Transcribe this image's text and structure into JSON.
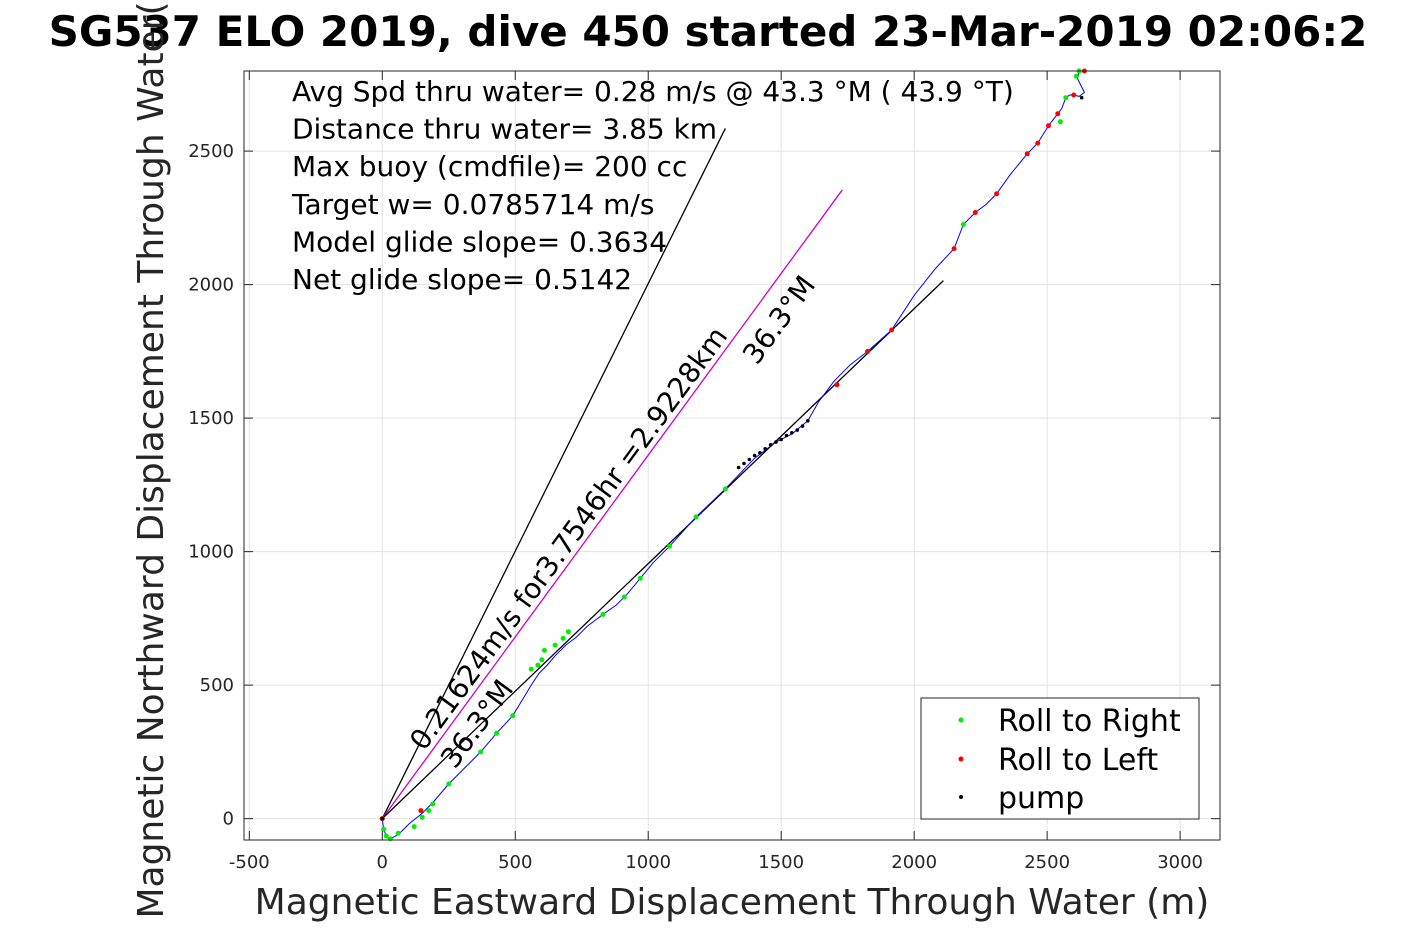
{
  "chart_data": {
    "type": "line",
    "title": "SG537 ELO 2019, dive 450 started 23-Mar-2019 02:06:2",
    "xlabel": "Magnetic Eastward Displacement Through Water (m)",
    "ylabel": "Magnetic Northward Displacement Through Water(",
    "xlim": [
      -520,
      3150
    ],
    "ylim": [
      -80,
      2800
    ],
    "xticks": [
      -500,
      0,
      500,
      1000,
      1500,
      2000,
      2500,
      3000
    ],
    "yticks": [
      0,
      500,
      1000,
      1500,
      2000,
      2500
    ],
    "xtick_labels": [
      "-500",
      "0",
      "500",
      "1000",
      "1500",
      "2000",
      "2500",
      "3000"
    ],
    "ytick_labels": [
      "0",
      "500",
      "1000",
      "1500",
      "2000",
      "2500"
    ],
    "grid": true,
    "legend_position": "bottom-right",
    "annotations": [
      "Avg Spd thru water=  0.28 m/s @  43.3 °M ( 43.9 °T)",
      "Distance thru water=  3.85 km",
      "Max buoy (cmdfile)= 200 cc",
      "Target w= 0.0785714 m/s",
      "Model glide slope= 0.3634",
      "Net glide slope= 0.5142"
    ],
    "line_labels": {
      "current": "0.21624m/s for3.7546hr =2.9228km",
      "current_heading": "36.3°M",
      "mid_heading": "36.3°M"
    },
    "reference_lines": [
      {
        "name": "black-upper",
        "color": "#000000",
        "x": [
          0,
          1290
        ],
        "y": [
          0,
          2585
        ]
      },
      {
        "name": "magenta-current",
        "color": "#cc00cc",
        "x": [
          0,
          1730
        ],
        "y": [
          0,
          2355
        ]
      },
      {
        "name": "black-mid",
        "color": "#000000",
        "x": [
          0,
          2110
        ],
        "y": [
          0,
          2015
        ]
      }
    ],
    "series": [
      {
        "name": "Roll to Right",
        "color": "#00ee00",
        "x": [
          0,
          5,
          15,
          30,
          60,
          120,
          150,
          175,
          190,
          250,
          370,
          430,
          490,
          560,
          585,
          600,
          610,
          650,
          680,
          700,
          830,
          910,
          970,
          1080,
          1180,
          1290,
          2185,
          2550,
          2570,
          2610,
          2620
        ],
        "y": [
          0,
          -40,
          -65,
          -75,
          -55,
          -30,
          5,
          30,
          55,
          130,
          250,
          320,
          385,
          560,
          575,
          595,
          630,
          650,
          675,
          700,
          765,
          830,
          900,
          1020,
          1130,
          1235,
          2225,
          2610,
          2700,
          2780,
          2800
        ]
      },
      {
        "name": "Roll to Left",
        "color": "#ff0000",
        "x": [
          0,
          145,
          1710,
          1825,
          1915,
          2150,
          2230,
          2310,
          2425,
          2465,
          2505,
          2540,
          2600,
          2640
        ],
        "y": [
          0,
          30,
          1625,
          1750,
          1830,
          2135,
          2270,
          2340,
          2490,
          2530,
          2595,
          2640,
          2710,
          2800
        ]
      },
      {
        "name": "pump",
        "color": "#000000",
        "x": [
          0,
          1340,
          1360,
          1380,
          1400,
          1420,
          1440,
          1460,
          1480,
          1500,
          1520,
          1540,
          1560,
          1580,
          1600,
          2630
        ],
        "y": [
          0,
          1315,
          1330,
          1345,
          1360,
          1370,
          1385,
          1400,
          1410,
          1420,
          1435,
          1445,
          1455,
          1470,
          1490,
          2700
        ]
      },
      {
        "name": "track",
        "color": "#0000ff",
        "x": [
          0,
          5,
          15,
          30,
          60,
          100,
          150,
          190,
          250,
          310,
          370,
          430,
          490,
          530,
          560,
          590,
          620,
          650,
          690,
          730,
          770,
          830,
          880,
          920,
          970,
          1020,
          1080,
          1180,
          1290,
          1400,
          1480,
          1540,
          1600,
          1640,
          1700,
          1760,
          1825,
          1915,
          2000,
          2080,
          2150,
          2185,
          2230,
          2270,
          2310,
          2360,
          2425,
          2465,
          2505,
          2540,
          2555,
          2570,
          2585,
          2600,
          2620,
          2640,
          2615,
          2620
        ],
        "y": [
          0,
          -40,
          -65,
          -75,
          -60,
          -20,
          20,
          60,
          130,
          190,
          250,
          320,
          385,
          450,
          500,
          545,
          575,
          610,
          650,
          680,
          720,
          765,
          800,
          840,
          900,
          960,
          1020,
          1130,
          1235,
          1350,
          1410,
          1440,
          1490,
          1560,
          1640,
          1700,
          1750,
          1830,
          1960,
          2060,
          2135,
          2225,
          2270,
          2300,
          2340,
          2410,
          2490,
          2530,
          2595,
          2640,
          2660,
          2700,
          2710,
          2710,
          2705,
          2720,
          2770,
          2800
        ]
      }
    ],
    "legend": [
      "Roll to Right",
      "Roll to Left",
      "pump"
    ]
  }
}
